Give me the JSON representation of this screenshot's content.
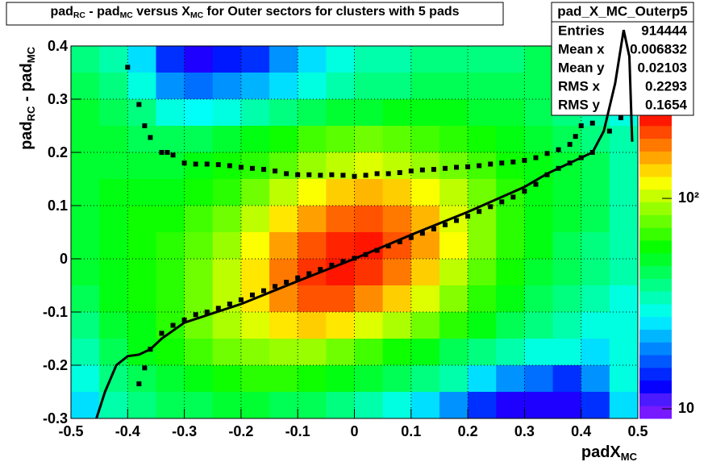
{
  "chart_data": {
    "type": "heatmap",
    "title": [
      "pad",
      "RC",
      " - pad",
      "MC",
      " versus X",
      "MC",
      " for Outer sectors for clusters with 5 pads"
    ],
    "xlabel": [
      "padX",
      "MC"
    ],
    "ylabel": [
      "pad",
      "RC",
      " - pad",
      "MC"
    ],
    "xlim": [
      -0.5,
      0.5
    ],
    "ylim": [
      -0.3,
      0.4
    ],
    "xticks": [
      -0.5,
      -0.4,
      -0.3,
      -0.2,
      -0.1,
      0,
      0.1,
      0.2,
      0.3,
      0.4,
      0.5
    ],
    "yticks": [
      -0.3,
      -0.2,
      -0.1,
      0,
      0.1,
      0.2,
      0.3,
      0.4
    ],
    "zlim": [
      9,
      255
    ],
    "zticks": [
      10,
      {
        "value": 100,
        "label": "10²"
      }
    ],
    "zscale": "log",
    "grid": true,
    "xbins": [
      -0.5,
      -0.45,
      -0.4,
      -0.35,
      -0.3,
      -0.25,
      -0.2,
      -0.15,
      -0.1,
      -0.05,
      0,
      0.05,
      0.1,
      0.15,
      0.2,
      0.25,
      0.3,
      0.35,
      0.4,
      0.45,
      0.5
    ],
    "ybins": [
      0.4,
      0.35,
      0.3,
      0.25,
      0.2,
      0.15,
      0.1,
      0.05,
      0,
      -0.05,
      -0.1,
      -0.15,
      -0.2,
      -0.25,
      -0.3
    ],
    "counts": [
      [
        40,
        35,
        25,
        15,
        12,
        14,
        15,
        20,
        25,
        30,
        35,
        35,
        40,
        40,
        40,
        40,
        45,
        40,
        35,
        30
      ],
      [
        45,
        40,
        30,
        20,
        18,
        20,
        22,
        25,
        30,
        35,
        40,
        40,
        45,
        45,
        45,
        45,
        45,
        40,
        35,
        30
      ],
      [
        50,
        45,
        40,
        30,
        28,
        30,
        35,
        40,
        45,
        50,
        50,
        55,
        55,
        55,
        50,
        50,
        45,
        40,
        35,
        30
      ],
      [
        50,
        50,
        45,
        45,
        45,
        50,
        55,
        60,
        70,
        75,
        80,
        75,
        70,
        65,
        60,
        55,
        50,
        45,
        40,
        35
      ],
      [
        50,
        50,
        50,
        50,
        55,
        60,
        65,
        75,
        90,
        100,
        110,
        100,
        90,
        80,
        70,
        60,
        55,
        50,
        45,
        35
      ],
      [
        50,
        55,
        55,
        55,
        60,
        65,
        80,
        100,
        120,
        140,
        150,
        140,
        120,
        100,
        80,
        65,
        55,
        50,
        45,
        35
      ],
      [
        50,
        55,
        60,
        60,
        70,
        80,
        100,
        130,
        160,
        190,
        200,
        180,
        150,
        110,
        85,
        65,
        55,
        50,
        45,
        35
      ],
      [
        50,
        55,
        60,
        65,
        75,
        90,
        120,
        160,
        200,
        230,
        240,
        200,
        160,
        120,
        85,
        65,
        55,
        45,
        40,
        35
      ],
      [
        50,
        55,
        60,
        65,
        80,
        100,
        130,
        180,
        220,
        240,
        220,
        180,
        140,
        100,
        75,
        60,
        50,
        45,
        40,
        35
      ],
      [
        45,
        55,
        60,
        65,
        80,
        100,
        130,
        170,
        200,
        200,
        170,
        140,
        110,
        85,
        65,
        55,
        45,
        40,
        35,
        30
      ],
      [
        40,
        50,
        55,
        65,
        80,
        95,
        110,
        130,
        140,
        130,
        110,
        95,
        80,
        65,
        55,
        45,
        40,
        35,
        30,
        30
      ],
      [
        35,
        45,
        55,
        60,
        70,
        80,
        85,
        90,
        90,
        80,
        70,
        60,
        55,
        45,
        40,
        35,
        30,
        30,
        25,
        30
      ],
      [
        30,
        40,
        45,
        50,
        55,
        60,
        65,
        65,
        60,
        55,
        50,
        45,
        40,
        35,
        25,
        20,
        18,
        15,
        20,
        30
      ],
      [
        25,
        35,
        40,
        45,
        45,
        50,
        50,
        45,
        45,
        40,
        35,
        30,
        25,
        20,
        15,
        12,
        12,
        12,
        15,
        25
      ]
    ],
    "profiles": [
      {
        "x": [
          -0.4,
          -0.38,
          -0.37,
          -0.36,
          -0.34,
          -0.33,
          -0.32,
          -0.3,
          -0.28,
          -0.26,
          -0.24,
          -0.22,
          -0.2,
          -0.18,
          -0.16,
          -0.14,
          -0.12,
          -0.1,
          -0.08,
          -0.06,
          -0.04,
          -0.02,
          0,
          0.02,
          0.04,
          0.06,
          0.08,
          0.1,
          0.12,
          0.14,
          0.16,
          0.18,
          0.2,
          0.22,
          0.24,
          0.26,
          0.28,
          0.3,
          0.32,
          0.34,
          0.36,
          0.38,
          0.39,
          0.4,
          0.42,
          0.43,
          0.45,
          0.47
        ],
        "values": [
          0.36,
          0.29,
          0.25,
          0.228,
          0.2,
          0.2,
          0.195,
          0.18,
          0.178,
          0.178,
          0.177,
          0.175,
          0.172,
          0.17,
          0.168,
          0.165,
          0.16,
          0.158,
          0.158,
          0.157,
          0.158,
          0.157,
          0.155,
          0.157,
          0.16,
          0.16,
          0.162,
          0.165,
          0.167,
          0.168,
          0.17,
          0.172,
          0.173,
          0.175,
          0.178,
          0.18,
          0.182,
          0.185,
          0.19,
          0.198,
          0.205,
          0.215,
          0.23,
          0.25,
          0.255,
          0.29,
          0.24,
          0.265
        ]
      },
      {
        "x": [
          -0.38,
          -0.37,
          -0.36,
          -0.34,
          -0.32,
          -0.3,
          -0.28,
          -0.26,
          -0.24,
          -0.22,
          -0.2,
          -0.18,
          -0.16,
          -0.14,
          -0.12,
          -0.1,
          -0.08,
          -0.06,
          -0.04,
          -0.02,
          0,
          0.02,
          0.04,
          0.06,
          0.08,
          0.1,
          0.12,
          0.14,
          0.16,
          0.18,
          0.2,
          0.22,
          0.24,
          0.26,
          0.28,
          0.3,
          0.32,
          0.34,
          0.36,
          0.38,
          0.4,
          0.42
        ],
        "values": [
          -0.235,
          -0.205,
          -0.17,
          -0.14,
          -0.125,
          -0.115,
          -0.105,
          -0.1,
          -0.093,
          -0.085,
          -0.077,
          -0.068,
          -0.06,
          -0.052,
          -0.044,
          -0.036,
          -0.028,
          -0.02,
          -0.012,
          -0.005,
          0.001,
          0.008,
          0.016,
          0.024,
          0.032,
          0.04,
          0.048,
          0.056,
          0.064,
          0.072,
          0.08,
          0.089,
          0.098,
          0.107,
          0.116,
          0.127,
          0.14,
          0.158,
          0.17,
          0.18,
          0.19,
          0.2
        ]
      }
    ],
    "fit": {
      "x": [
        -0.455,
        -0.44,
        -0.42,
        -0.4,
        -0.38,
        -0.36,
        -0.34,
        -0.3,
        -0.2,
        -0.1,
        0,
        0.1,
        0.2,
        0.3,
        0.34,
        0.38,
        0.42,
        0.44,
        0.46,
        0.475,
        0.485,
        0.49
      ],
      "values": [
        -0.3,
        -0.25,
        -0.2,
        -0.183,
        -0.18,
        -0.17,
        -0.15,
        -0.12,
        -0.085,
        -0.042,
        0,
        0.045,
        0.088,
        0.135,
        0.16,
        0.18,
        0.2,
        0.24,
        0.33,
        0.43,
        0.38,
        0.22
      ]
    },
    "stats": {
      "name": "pad_X_MC_Outerp5",
      "rows": [
        [
          "Entries",
          914444
        ],
        [
          "Mean x",
          0.006832
        ],
        [
          "Mean y",
          0.02103
        ],
        [
          "RMS x",
          0.2293
        ],
        [
          "RMS y",
          0.1654
        ]
      ]
    }
  }
}
